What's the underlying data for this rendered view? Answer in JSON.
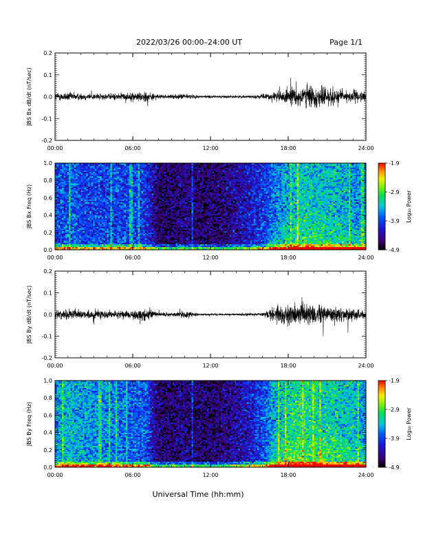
{
  "header": {
    "date_range": "2022/03/26  00:00–24:00 UT",
    "page": "Page 1/1"
  },
  "x_axis_title": "Universal Time (hh:mm)",
  "chart_data": [
    {
      "type": "line",
      "ylabel": "JBS Bx dB/dt (nT/sec)",
      "xlim": [
        0,
        24
      ],
      "ylim": [
        -0.2,
        0.2
      ],
      "x_ticks": [
        "00:00",
        "06:00",
        "12:00",
        "18:00",
        "24:00"
      ],
      "y_ticks": [
        "-0.2",
        "-0.1",
        "0.0",
        "0.1",
        "0.2"
      ],
      "activity_envelope": {
        "hours": [
          0,
          1,
          2,
          3,
          4,
          5,
          6,
          7,
          8,
          9,
          10,
          11,
          12,
          13,
          14,
          15,
          16,
          17,
          18,
          19,
          20,
          21,
          22,
          23,
          24
        ],
        "amplitude": [
          0.015,
          0.018,
          0.014,
          0.013,
          0.012,
          0.014,
          0.016,
          0.022,
          0.008,
          0.007,
          0.012,
          0.006,
          0.005,
          0.005,
          0.005,
          0.006,
          0.009,
          0.02,
          0.03,
          0.045,
          0.045,
          0.038,
          0.03,
          0.025,
          0.02
        ]
      }
    },
    {
      "type": "heatmap",
      "ylabel": "JBS Bx Freq (Hz)",
      "xlim": [
        0,
        24
      ],
      "ylim": [
        0.0,
        1.0
      ],
      "x_ticks": [
        "00:00",
        "06:00",
        "12:00",
        "18:00",
        "24:00"
      ],
      "y_ticks": [
        "0.0",
        "0.2",
        "0.4",
        "0.6",
        "0.8",
        "1.0"
      ],
      "colorbar": {
        "label": "Log₁₀ Power",
        "ticks": [
          "-1.9",
          "-2.9",
          "-3.9",
          "-4.9"
        ],
        "range": [
          -4.9,
          -1.9
        ]
      },
      "background_hours": [
        0,
        1,
        2,
        3,
        4,
        5,
        6,
        7,
        8,
        9,
        10,
        11,
        12,
        13,
        14,
        15,
        16,
        17,
        18,
        19,
        20,
        21,
        22,
        23,
        24
      ],
      "background_power": [
        -3.9,
        -3.8,
        -3.9,
        -3.9,
        -3.9,
        -3.9,
        -3.9,
        -4.0,
        -4.6,
        -4.6,
        -4.5,
        -4.6,
        -4.6,
        -4.55,
        -4.4,
        -4.2,
        -4.0,
        -3.7,
        -3.5,
        -3.3,
        -3.35,
        -3.4,
        -3.45,
        -3.6,
        -3.7
      ]
    },
    {
      "type": "line",
      "ylabel": "JBS By dB/dt (nT/sec)",
      "xlim": [
        0,
        24
      ],
      "ylim": [
        -0.2,
        0.2
      ],
      "x_ticks": [
        "00:00",
        "06:00",
        "12:00",
        "18:00",
        "24:00"
      ],
      "y_ticks": [
        "-0.2",
        "-0.1",
        "0.0",
        "0.1",
        "0.2"
      ],
      "activity_envelope": {
        "hours": [
          0,
          1,
          2,
          3,
          4,
          5,
          6,
          7,
          8,
          9,
          10,
          11,
          12,
          13,
          14,
          15,
          16,
          17,
          18,
          19,
          20,
          21,
          22,
          23,
          24
        ],
        "amplitude": [
          0.02,
          0.022,
          0.018,
          0.016,
          0.015,
          0.015,
          0.018,
          0.022,
          0.008,
          0.007,
          0.015,
          0.005,
          0.004,
          0.004,
          0.004,
          0.005,
          0.007,
          0.035,
          0.04,
          0.045,
          0.04,
          0.035,
          0.035,
          0.028,
          0.02
        ]
      }
    },
    {
      "type": "heatmap",
      "ylabel": "JBS By Freq (Hz)",
      "xlim": [
        0,
        24
      ],
      "ylim": [
        0.0,
        1.0
      ],
      "x_ticks": [
        "00:00",
        "06:00",
        "12:00",
        "18:00",
        "24:00"
      ],
      "y_ticks": [
        "0.0",
        "0.2",
        "0.4",
        "0.6",
        "0.8",
        "1.0"
      ],
      "colorbar": {
        "label": "Log₁₀ Power",
        "ticks": [
          "-1.9",
          "-2.9",
          "-3.9",
          "-4.9"
        ],
        "range": [
          -4.9,
          -1.9
        ]
      },
      "background_hours": [
        0,
        1,
        2,
        3,
        4,
        5,
        6,
        7,
        8,
        9,
        10,
        11,
        12,
        13,
        14,
        15,
        16,
        17,
        18,
        19,
        20,
        21,
        22,
        23,
        24
      ],
      "background_power": [
        -3.6,
        -3.4,
        -3.5,
        -3.6,
        -3.6,
        -3.7,
        -3.8,
        -3.8,
        -4.6,
        -4.6,
        -4.5,
        -4.6,
        -4.6,
        -4.55,
        -4.4,
        -4.2,
        -3.9,
        -3.5,
        -3.2,
        -3.1,
        -3.2,
        -3.25,
        -3.3,
        -3.4,
        -3.6
      ]
    }
  ]
}
